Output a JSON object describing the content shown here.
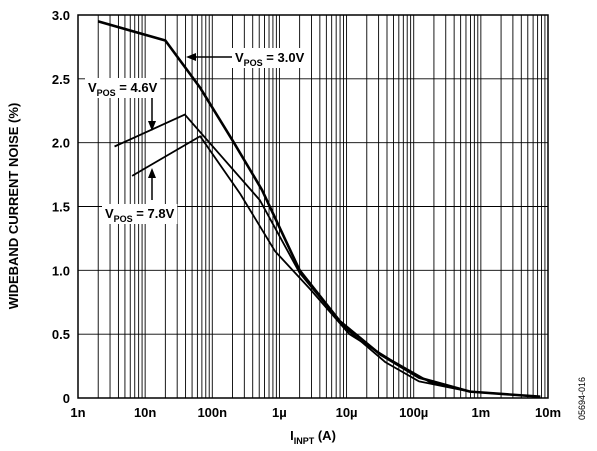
{
  "chart_data": {
    "type": "line",
    "y_label": "WIDEBAND CURRENT NOISE (%)",
    "x_label": [
      "I",
      "INPT",
      " (A)"
    ],
    "source": "05694-016",
    "xscale": "log",
    "xlim": [
      1e-09,
      0.01
    ],
    "xticks": [
      {
        "value": 1e-09,
        "label": "1n"
      },
      {
        "value": 1e-08,
        "label": "10n"
      },
      {
        "value": 1e-07,
        "label": "100n"
      },
      {
        "value": 1e-06,
        "label": "1µ"
      },
      {
        "value": 1e-05,
        "label": "10µ"
      },
      {
        "value": 0.0001,
        "label": "100µ"
      },
      {
        "value": 0.001,
        "label": "1m"
      },
      {
        "value": 0.01,
        "label": "10m"
      }
    ],
    "ylim": [
      0,
      3
    ],
    "yticks": [
      0,
      0.5,
      {
        "value": 1,
        "label": "1.0"
      },
      1.5,
      {
        "value": 2,
        "label": "2.0"
      },
      2.5,
      {
        "value": 3,
        "label": "3.0"
      }
    ],
    "grid": true,
    "series": [
      {
        "label": [
          "V",
          "POS",
          " = 3.0V"
        ],
        "color": "#000000",
        "x": [
          2e-09,
          2e-08,
          6.6e-08,
          2.1e-07,
          5.5e-07,
          2e-06,
          8e-06,
          3.2e-05,
          0.00012,
          0.00069,
          0.0077
        ],
        "values": [
          2.95,
          2.8,
          2.43,
          2.0,
          1.63,
          1.0,
          0.6,
          0.34,
          0.16,
          0.05,
          0.01
        ]
      },
      {
        "label": [
          "V",
          "POS",
          " = 4.6V"
        ],
        "color": "#000000",
        "x": [
          3.5e-09,
          3.9e-08,
          1.1e-07,
          5.1e-07,
          2e-06,
          9.5e-06,
          3.8e-05,
          0.00012,
          0.00069,
          0.0077
        ],
        "values": [
          1.97,
          2.22,
          1.95,
          1.55,
          0.98,
          0.55,
          0.28,
          0.13,
          0.05,
          0.01
        ]
      },
      {
        "label": [
          "V",
          "POS",
          " = 7.8V"
        ],
        "color": "#000000",
        "x": [
          6.4e-09,
          6.6e-08,
          2.6e-07,
          8.6e-07,
          2.9e-06,
          1.1e-05,
          4.5e-05,
          0.00018,
          0.00069,
          0.0077
        ],
        "values": [
          1.74,
          2.05,
          1.6,
          1.15,
          0.85,
          0.5,
          0.3,
          0.12,
          0.05,
          0.01
        ]
      }
    ]
  }
}
